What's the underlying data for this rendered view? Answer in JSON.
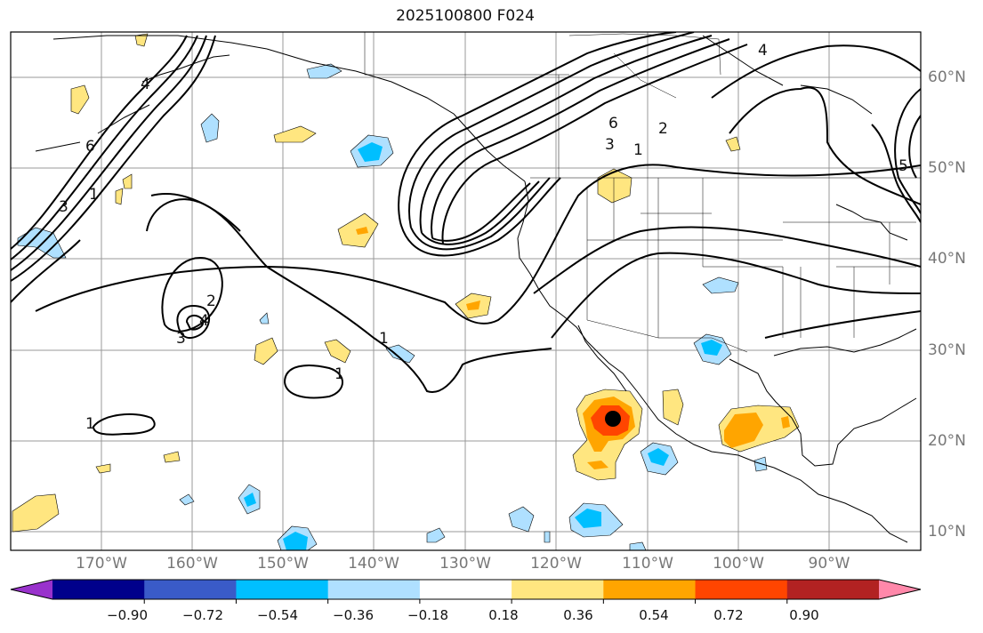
{
  "title": "2025100800 F024",
  "lon_labels": [
    "170°W",
    "160°W",
    "150°W",
    "140°W",
    "130°W",
    "120°W",
    "110°W",
    "100°W",
    "90°W"
  ],
  "lat_labels": [
    "60°N",
    "50°N",
    "40°N",
    "30°N",
    "20°N",
    "10°N"
  ],
  "colorbar": {
    "ticks": [
      "−0.90",
      "−0.72",
      "−0.54",
      "−0.36",
      "−0.18",
      "0.18",
      "0.36",
      "0.54",
      "0.72",
      "0.90"
    ],
    "colors": [
      "#9932cc",
      "#00008b",
      "#3a5bc8",
      "#00bfff",
      "#afe0ff",
      "#ffffff",
      "#ffe680",
      "#ffa500",
      "#ff4500",
      "#b22222",
      "#ff88aa"
    ]
  },
  "contour_labels": {
    "nw_6": "6",
    "nw_3": "3",
    "nw_1": "1",
    "nw_4": "4",
    "low_2": "2",
    "low_4": "4",
    "low_3": "3",
    "mid_1": "1",
    "mid_1b": "1",
    "sw_1": "1",
    "ne_6": "6",
    "ne_3": "3",
    "ne_1": "1",
    "ne_2": "2",
    "ne_4": "4",
    "ne_5": "5"
  },
  "marker": "storm-center"
}
